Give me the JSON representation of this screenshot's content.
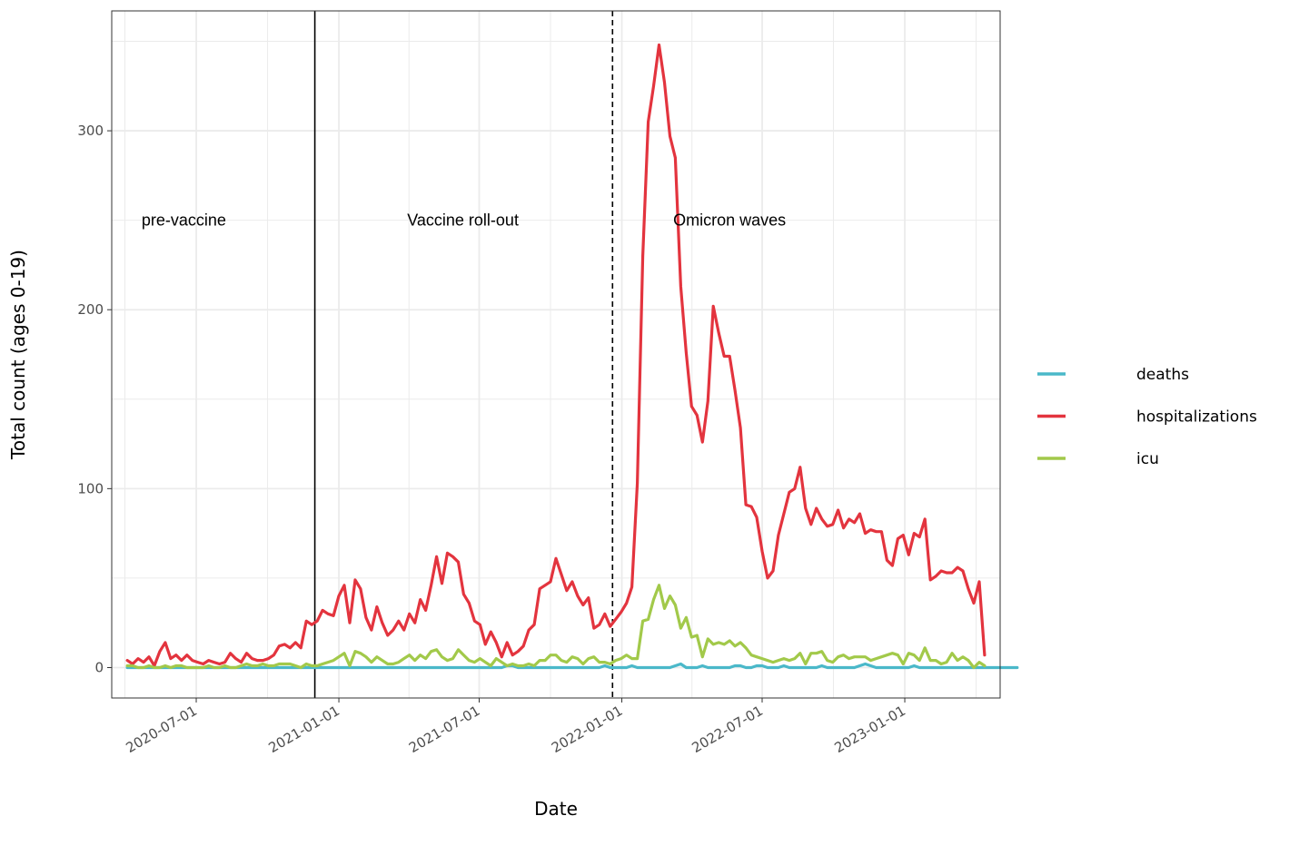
{
  "chart_data": {
    "type": "line",
    "title": "",
    "xlabel": "Date",
    "ylabel": "Total count (ages 0-19)",
    "x_axis": {
      "type": "date",
      "range": [
        "2020-03-14",
        "2023-05-04"
      ],
      "ticks": [
        "2020-07-01",
        "2021-01-01",
        "2021-07-01",
        "2022-01-01",
        "2022-07-01",
        "2023-01-01"
      ]
    },
    "ylim": [
      -17,
      367
    ],
    "y_ticks": [
      0,
      100,
      200,
      300
    ],
    "grid": true,
    "legend_position": "right",
    "start_date": "2020-04-03",
    "interval_days": 7,
    "series": [
      {
        "name": "deaths",
        "color": "#4ab8c9",
        "values": [
          0,
          0,
          0,
          0,
          0,
          0,
          0,
          0,
          0,
          0,
          0,
          0,
          0,
          0,
          0,
          0,
          0,
          0,
          0,
          0,
          0,
          0,
          0,
          0,
          0,
          0,
          0,
          0,
          0,
          0,
          0,
          0,
          0,
          0,
          0,
          0,
          0,
          0,
          0,
          0,
          0,
          0,
          0,
          0,
          0,
          0,
          0,
          0,
          0,
          0,
          0,
          0,
          0,
          0,
          0,
          0,
          0,
          0,
          0,
          0,
          0,
          0,
          0,
          0,
          0,
          0,
          0,
          0,
          0,
          0,
          1,
          1,
          0,
          0,
          0,
          0,
          0,
          0,
          0,
          0,
          0,
          0,
          0,
          0,
          0,
          0,
          0,
          0,
          1,
          0,
          0,
          0,
          0,
          1,
          0,
          0,
          0,
          0,
          0,
          0,
          0,
          1,
          2,
          0,
          0,
          0,
          1,
          0,
          0,
          0,
          0,
          0,
          1,
          1,
          0,
          0,
          1,
          1,
          0,
          0,
          0,
          1,
          0,
          0,
          0,
          0,
          0,
          0,
          1,
          0,
          0,
          0,
          0,
          0,
          0,
          1,
          2,
          1,
          0,
          0,
          0,
          0,
          0,
          0,
          0,
          1,
          0,
          0,
          0,
          0,
          0,
          0,
          0,
          0,
          0,
          0,
          0,
          0,
          0,
          0,
          0,
          0,
          0,
          0,
          0
        ]
      },
      {
        "name": "hospitalizations",
        "color": "#e3343e",
        "values": [
          4,
          2,
          5,
          3,
          6,
          1,
          9,
          14,
          5,
          7,
          4,
          7,
          4,
          3,
          2,
          4,
          3,
          2,
          3,
          8,
          5,
          3,
          8,
          5,
          4,
          4,
          5,
          7,
          12,
          13,
          11,
          14,
          11,
          26,
          24,
          26,
          32,
          30,
          29,
          40,
          46,
          25,
          49,
          44,
          28,
          21,
          34,
          25,
          18,
          21,
          26,
          21,
          30,
          25,
          38,
          32,
          46,
          62,
          47,
          64,
          62,
          59,
          41,
          36,
          26,
          24,
          13,
          20,
          14,
          6,
          14,
          7,
          9,
          12,
          21,
          24,
          44,
          46,
          48,
          61,
          52,
          43,
          48,
          40,
          35,
          39,
          22,
          24,
          30,
          23,
          27,
          31,
          36,
          45,
          103,
          230,
          305,
          325,
          348,
          327,
          297,
          285,
          213,
          176,
          146,
          141,
          126,
          149,
          202,
          187,
          174,
          174,
          155,
          134,
          91,
          90,
          84,
          65,
          50,
          54,
          74,
          86,
          98,
          100,
          112,
          89,
          80,
          89,
          83,
          79,
          80,
          88,
          78,
          83,
          81,
          86,
          75,
          77,
          76,
          76,
          60,
          57,
          72,
          74,
          63,
          75,
          73,
          83,
          49,
          51,
          54,
          53,
          53,
          56,
          54,
          44,
          36,
          48,
          7
        ]
      },
      {
        "name": "icu",
        "color": "#a2c94a",
        "values": [
          1,
          1,
          0,
          0,
          1,
          0,
          0,
          1,
          0,
          1,
          1,
          0,
          0,
          0,
          0,
          1,
          0,
          0,
          1,
          0,
          0,
          1,
          2,
          1,
          1,
          2,
          1,
          1,
          2,
          2,
          2,
          1,
          0,
          2,
          1,
          1,
          2,
          3,
          4,
          6,
          8,
          1,
          9,
          8,
          6,
          3,
          6,
          4,
          2,
          2,
          3,
          5,
          7,
          4,
          7,
          5,
          9,
          10,
          6,
          4,
          5,
          10,
          7,
          4,
          3,
          5,
          3,
          1,
          5,
          3,
          1,
          2,
          1,
          1,
          2,
          1,
          4,
          4,
          7,
          7,
          4,
          3,
          6,
          5,
          2,
          5,
          6,
          3,
          3,
          2,
          4,
          5,
          7,
          5,
          5,
          26,
          27,
          38,
          46,
          33,
          40,
          35,
          22,
          28,
          17,
          18,
          6,
          16,
          13,
          14,
          13,
          15,
          12,
          14,
          11,
          7,
          6,
          5,
          4,
          3,
          4,
          5,
          4,
          5,
          8,
          2,
          8,
          8,
          9,
          4,
          3,
          6,
          7,
          5,
          6,
          6,
          6,
          4,
          5,
          6,
          7,
          8,
          7,
          2,
          8,
          7,
          4,
          11,
          4,
          4,
          2,
          3,
          8,
          4,
          6,
          4,
          0,
          3,
          1
        ]
      }
    ],
    "vlines": [
      {
        "date": "2020-12-01",
        "style": "solid",
        "label": "pre-vaccine",
        "label_date": "2020-06-15",
        "label_y": 250
      },
      {
        "date": "2021-12-20",
        "style": "dashed",
        "label": "Vaccine roll-out",
        "label_date": "2021-06-10",
        "label_y": 250
      },
      {
        "label": "Omicron waves",
        "label_date": "2022-05-20",
        "label_y": 250
      }
    ]
  }
}
